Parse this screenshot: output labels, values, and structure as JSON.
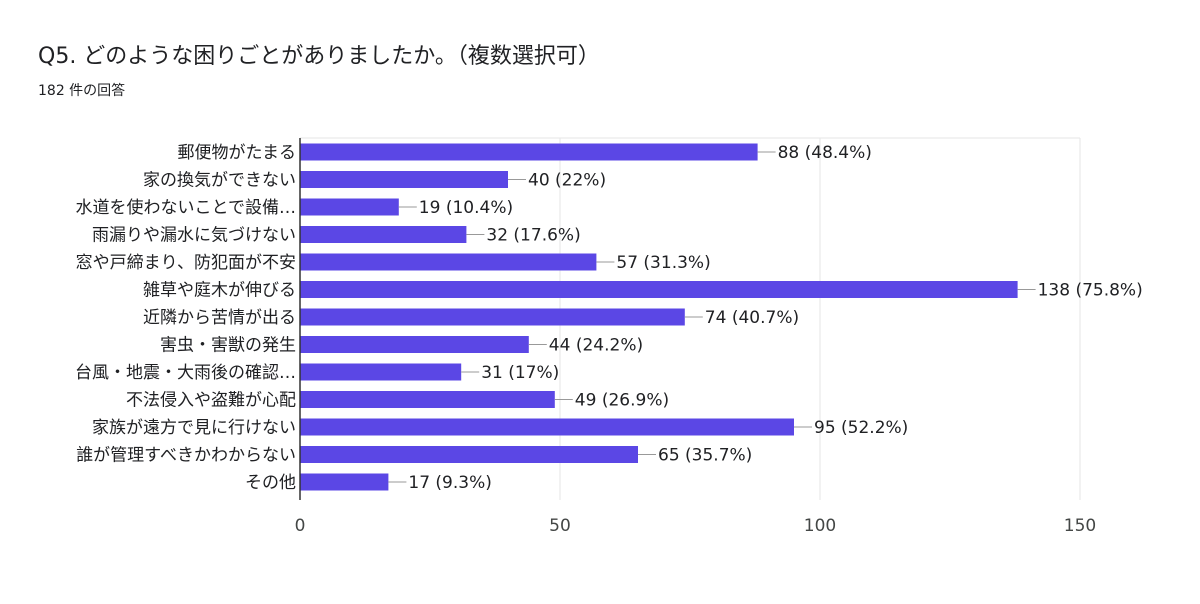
{
  "header": {
    "title": "Q5. どのような困りごとがありましたか。（複数選択可）",
    "response_count": "182 件の回答"
  },
  "colors": {
    "bar": "#5B47E5",
    "gridline": "#e6e6e6",
    "axis": "#333333",
    "connector": "#999999"
  },
  "chart_data": {
    "type": "bar",
    "orientation": "horizontal",
    "title": "",
    "xlabel": "",
    "ylabel": "",
    "xlim": [
      0,
      150
    ],
    "x_ticks": [
      0,
      50,
      100,
      150
    ],
    "grid": true,
    "categories": [
      "郵便物がたまる",
      "家の換気ができない",
      "水道を使わないことで設備…",
      "雨漏りや漏水に気づけない",
      "窓や戸締まり、防犯面が不安",
      "雑草や庭木が伸びる",
      "近隣から苦情が出る",
      "害虫・害獣の発生",
      "台風・地震・大雨後の確認…",
      "不法侵入や盗難が心配",
      "家族が遠方で見に行けない",
      "誰が管理すべきかわからない",
      "その他"
    ],
    "values": [
      88,
      40,
      19,
      32,
      57,
      138,
      74,
      44,
      31,
      49,
      95,
      65,
      17
    ],
    "labels": [
      "88 (48.4%)",
      "40 (22%)",
      "19 (10.4%)",
      "32 (17.6%)",
      "57 (31.3%)",
      "138 (75.8%)",
      "74 (40.7%)",
      "44 (24.2%)",
      "31 (17%)",
      "49 (26.9%)",
      "95 (52.2%)",
      "65 (35.7%)",
      "17 (9.3%)"
    ]
  }
}
